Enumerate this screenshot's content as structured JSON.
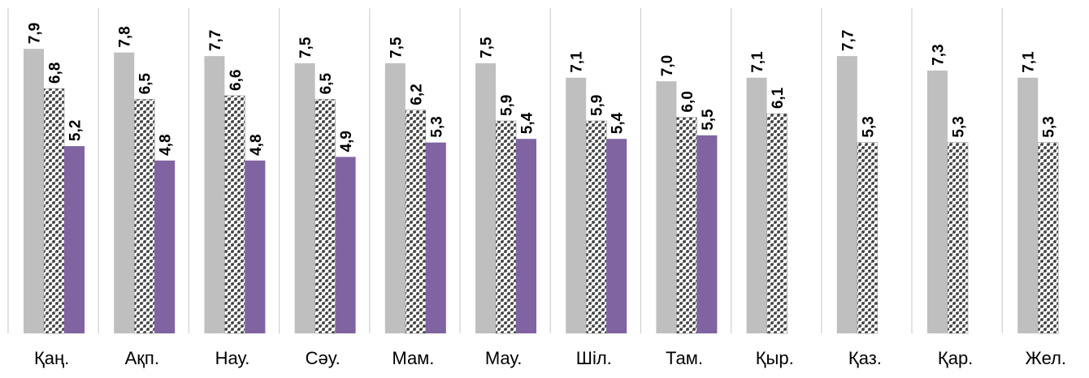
{
  "chart_data": {
    "type": "bar",
    "categories": [
      "Қаң.",
      "Ақп.",
      "Нау.",
      "Сәу.",
      "Мам.",
      "Мау.",
      "Шіл.",
      "Там.",
      "Қыр.",
      "Қаз.",
      "Қар.",
      "Жел."
    ],
    "series": [
      {
        "values": [
          7.9,
          7.8,
          7.7,
          7.5,
          7.5,
          7.5,
          7.1,
          7.0,
          7.1,
          7.7,
          7.3,
          7.1
        ],
        "labels": [
          "7,9",
          "7,8",
          "7,7",
          "7,5",
          "7,5",
          "7,5",
          "7,1",
          "7,0",
          "7,1",
          "7,7",
          "7,3",
          "7,1"
        ],
        "color": "#bfbfbf",
        "pattern": "solid"
      },
      {
        "values": [
          6.8,
          6.5,
          6.6,
          6.5,
          6.2,
          5.9,
          5.9,
          6.0,
          6.1,
          5.3,
          5.3,
          5.3
        ],
        "labels": [
          "6,8",
          "6,5",
          "6,6",
          "6,5",
          "6,2",
          "5,9",
          "5,9",
          "6,0",
          "6,1",
          "5,3",
          "5,3",
          "5,3"
        ],
        "color": "#808080",
        "pattern": "checkered"
      },
      {
        "values": [
          5.2,
          4.8,
          4.8,
          4.9,
          5.3,
          5.4,
          5.4,
          5.5,
          null,
          null,
          null,
          null
        ],
        "labels": [
          "5,2",
          "4,8",
          "4,8",
          "4,9",
          "5,3",
          "5,4",
          "5,4",
          "5,5",
          "",
          "",
          "",
          ""
        ],
        "color": "#8064a2",
        "pattern": "solid"
      }
    ],
    "ylim": [
      0,
      8
    ],
    "grid": false,
    "legend": "none",
    "data_labels": true,
    "data_label_orientation": "vertical"
  }
}
